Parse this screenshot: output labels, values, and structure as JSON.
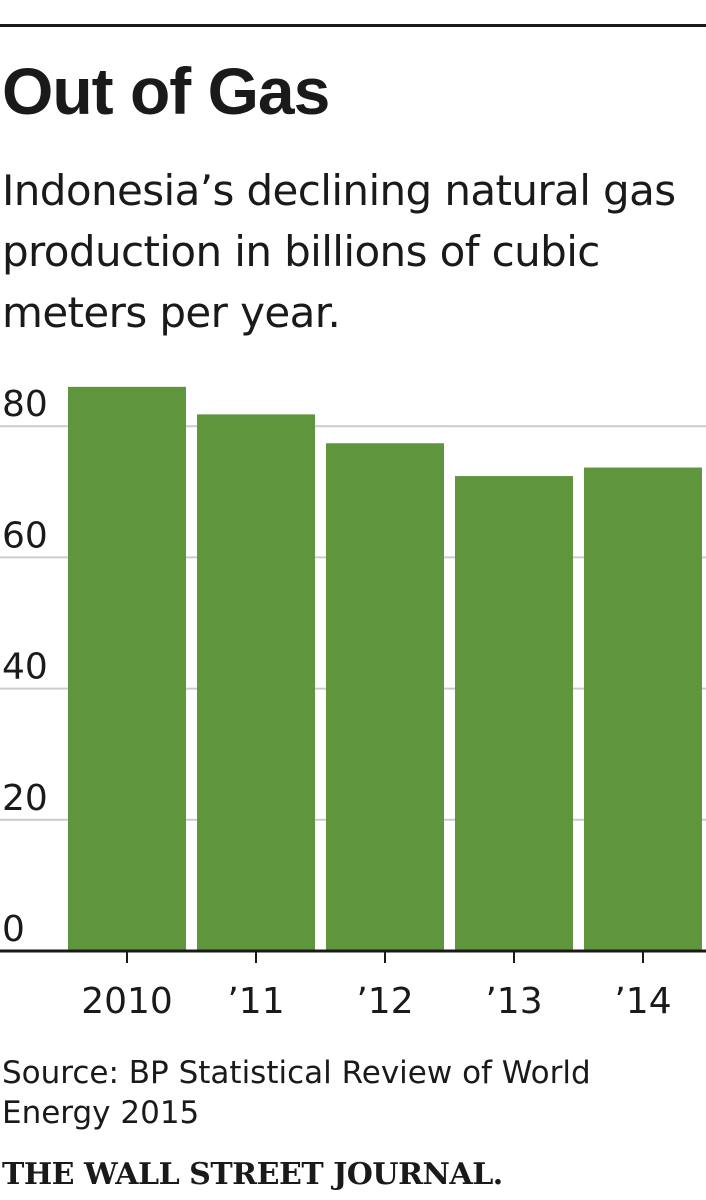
{
  "title": "Out of Gas",
  "subtitle": "Indonesia’s declining natural gas production in billions of cubic meters per year.",
  "source": "Source: BP Statistical Review of World Energy 2015",
  "brand": "THE WALL STREET JOURNAL.",
  "chart_data": {
    "type": "bar",
    "categories": [
      "2010",
      "’11",
      "’12",
      "’13",
      "’14"
    ],
    "values": [
      86,
      81.8,
      77.4,
      72.4,
      73.7
    ],
    "ylim": [
      0,
      80
    ],
    "yticks": [
      0,
      20,
      40,
      60,
      80
    ],
    "ytick_labels": [
      "0",
      "20",
      "40",
      "60",
      "80"
    ],
    "bar_color": "#5f953d",
    "grid_color": "#cccccc",
    "grid": true
  }
}
